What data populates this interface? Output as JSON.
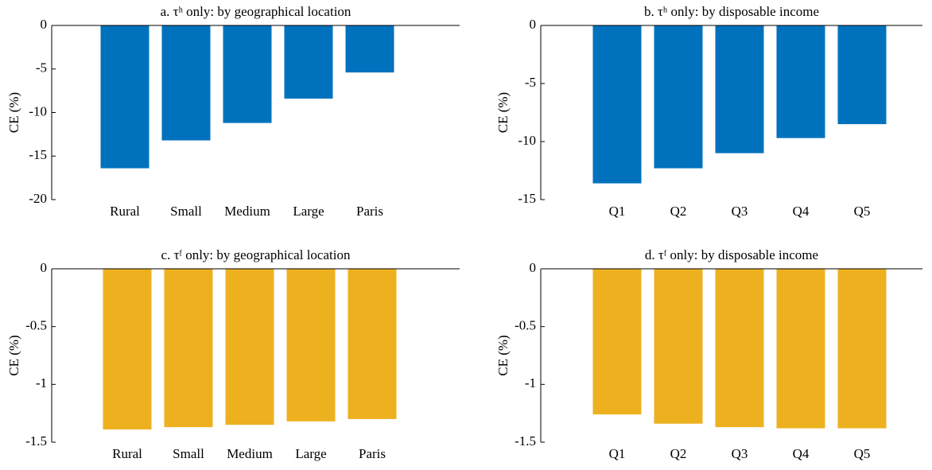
{
  "chart_data": [
    {
      "type": "bar",
      "title": "a. τʰ only: by geographical location",
      "y_label": "CE (%)",
      "categories": [
        "Rural",
        "Small",
        "Medium",
        "Large",
        "Paris"
      ],
      "values": [
        -16.4,
        -13.2,
        -11.2,
        -8.4,
        -5.4
      ],
      "color": "#0072bd",
      "ylim": [
        -20,
        0
      ],
      "yticks": [
        0,
        -5,
        -10,
        -15,
        -20
      ]
    },
    {
      "type": "bar",
      "title": "b. τʰ only: by disposable income",
      "y_label": "CE (%)",
      "categories": [
        "Q1",
        "Q2",
        "Q3",
        "Q4",
        "Q5"
      ],
      "values": [
        -13.6,
        -12.3,
        -11.0,
        -9.7,
        -8.5
      ],
      "color": "#0072bd",
      "ylim": [
        -15,
        0
      ],
      "yticks": [
        0,
        -5,
        -10,
        -15
      ]
    },
    {
      "type": "bar",
      "title": "c. τᶠ only: by geographical location",
      "y_label": "CE (%)",
      "categories": [
        "Rural",
        "Small",
        "Medium",
        "Large",
        "Paris"
      ],
      "values": [
        -1.39,
        -1.37,
        -1.35,
        -1.32,
        -1.3
      ],
      "color": "#edb120",
      "ylim": [
        -1.5,
        0
      ],
      "yticks": [
        0,
        -0.5,
        -1,
        -1.5
      ]
    },
    {
      "type": "bar",
      "title": "d. τᶠ only: by disposable income",
      "y_label": "CE (%)",
      "categories": [
        "Q1",
        "Q2",
        "Q3",
        "Q4",
        "Q5"
      ],
      "values": [
        -1.26,
        -1.34,
        -1.37,
        -1.38,
        -1.38
      ],
      "color": "#edb120",
      "ylim": [
        -1.5,
        0
      ],
      "yticks": [
        0,
        -0.5,
        -1,
        -1.5
      ]
    }
  ]
}
